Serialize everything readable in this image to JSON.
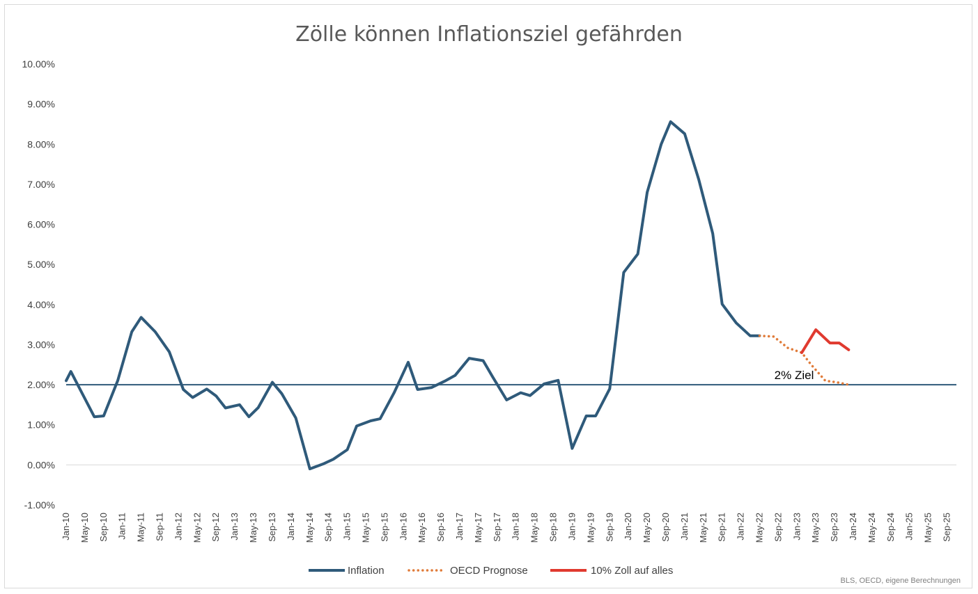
{
  "chart_data": {
    "type": "line",
    "title": "Zölle können Inflationsziel gefährden",
    "xlabel": "",
    "ylabel": "",
    "ylim": [
      -1.0,
      10.0
    ],
    "yticks": [
      -1,
      0,
      1,
      2,
      3,
      4,
      5,
      6,
      7,
      8,
      9,
      10
    ],
    "ytick_labels": [
      "-1.00%",
      "0.00%",
      "1.00%",
      "2.00%",
      "3.00%",
      "4.00%",
      "5.00%",
      "6.00%",
      "7.00%",
      "8.00%",
      "9.00%",
      "10.00%"
    ],
    "x_start": "Jan-10",
    "x_end": "Nov-25",
    "x_tick_labels": [
      "Jan-10",
      "May-10",
      "Sep-10",
      "Jan-11",
      "May-11",
      "Sep-11",
      "Jan-12",
      "May-12",
      "Sep-12",
      "Jan-13",
      "May-13",
      "Sep-13",
      "Jan-14",
      "May-14",
      "Sep-14",
      "Jan-15",
      "May-15",
      "Sep-15",
      "Jan-16",
      "May-16",
      "Sep-16",
      "Jan-17",
      "May-17",
      "Sep-17",
      "Jan-18",
      "May-18",
      "Sep-18",
      "Jan-19",
      "May-19",
      "Sep-19",
      "Jan-20",
      "May-20",
      "Sep-20",
      "Jan-21",
      "May-21",
      "Sep-21",
      "Jan-22",
      "May-22",
      "Sep-22",
      "Jan-23",
      "May-23",
      "Sep-23",
      "Jan-24",
      "May-24",
      "Sep-24",
      "Jan-25",
      "May-25",
      "Sep-25"
    ],
    "grid": false,
    "legend_position": "bottom",
    "series": [
      {
        "name": "Inflation",
        "color": "#2f5a7a",
        "style": "solid",
        "points": [
          [
            "Jan-10",
            2.1
          ],
          [
            "Feb-10",
            2.33
          ],
          [
            "Mar-10",
            2.1
          ],
          [
            "Jul-10",
            1.2
          ],
          [
            "Sep-10",
            1.22
          ],
          [
            "Dec-10",
            2.1
          ],
          [
            "Mar-11",
            3.32
          ],
          [
            "May-11",
            3.68
          ],
          [
            "Aug-11",
            3.32
          ],
          [
            "Nov-11",
            2.82
          ],
          [
            "Feb-12",
            1.88
          ],
          [
            "Apr-12",
            1.68
          ],
          [
            "Jul-12",
            1.89
          ],
          [
            "Sep-12",
            1.72
          ],
          [
            "Nov-12",
            1.42
          ],
          [
            "Feb-13",
            1.5
          ],
          [
            "Apr-13",
            1.2
          ],
          [
            "Jun-13",
            1.43
          ],
          [
            "Sep-13",
            2.06
          ],
          [
            "Nov-13",
            1.78
          ],
          [
            "Feb-14",
            1.17
          ],
          [
            "May-14",
            -0.1
          ],
          [
            "Aug-14",
            0.03
          ],
          [
            "Oct-14",
            0.14
          ],
          [
            "Jan-15",
            0.38
          ],
          [
            "Mar-15",
            0.97
          ],
          [
            "Jun-15",
            1.1
          ],
          [
            "Aug-15",
            1.15
          ],
          [
            "Nov-15",
            1.8
          ],
          [
            "Feb-16",
            2.56
          ],
          [
            "Apr-16",
            1.88
          ],
          [
            "Jul-16",
            1.93
          ],
          [
            "Oct-16",
            2.1
          ],
          [
            "Dec-16",
            2.23
          ],
          [
            "Mar-17",
            2.66
          ],
          [
            "Jun-17",
            2.6
          ],
          [
            "Aug-17",
            2.2
          ],
          [
            "Nov-17",
            1.62
          ],
          [
            "Feb-18",
            1.8
          ],
          [
            "Apr-18",
            1.73
          ],
          [
            "Jul-18",
            2.02
          ],
          [
            "Oct-18",
            2.11
          ],
          [
            "Jan-19",
            0.41
          ],
          [
            "Apr-19",
            1.22
          ],
          [
            "Jun-19",
            1.22
          ],
          [
            "Sep-19",
            1.9
          ],
          [
            "Dec-19",
            4.8
          ],
          [
            "Mar-20",
            5.26
          ],
          [
            "May-20",
            6.8
          ],
          [
            "Aug-20",
            8.0
          ],
          [
            "Oct-20",
            8.56
          ],
          [
            "Jan-21",
            8.26
          ],
          [
            "Apr-21",
            7.12
          ],
          [
            "Jul-21",
            5.77
          ],
          [
            "Sep-21",
            4.01
          ],
          [
            "Dec-21",
            3.54
          ],
          [
            "Mar-22",
            3.22
          ],
          [
            "May-22",
            3.22
          ]
        ]
      },
      {
        "name": "OECD Prognose",
        "color": "#e07b39",
        "style": "dotted",
        "points": [
          [
            "May-22",
            3.22
          ],
          [
            "Aug-22",
            3.2
          ],
          [
            "Nov-22",
            2.92
          ],
          [
            "Feb-23",
            2.8
          ],
          [
            "Apr-23",
            2.5
          ],
          [
            "Jul-23",
            2.1
          ],
          [
            "Oct-23",
            2.05
          ],
          [
            "Dec-23",
            2.0
          ]
        ]
      },
      {
        "name": "10% Zoll auf alles",
        "color": "#e03a2f",
        "style": "solid",
        "points": [
          [
            "Feb-23",
            2.8
          ],
          [
            "May-23",
            3.37
          ],
          [
            "Aug-23",
            3.04
          ],
          [
            "Oct-23",
            3.04
          ],
          [
            "Dec-23",
            2.87
          ]
        ]
      }
    ],
    "reference_line": {
      "value": 2.0,
      "label": "2% Ziel",
      "color": "#2f5a7a"
    },
    "source_note": "BLS, OECD, eigene Berechnungen"
  }
}
